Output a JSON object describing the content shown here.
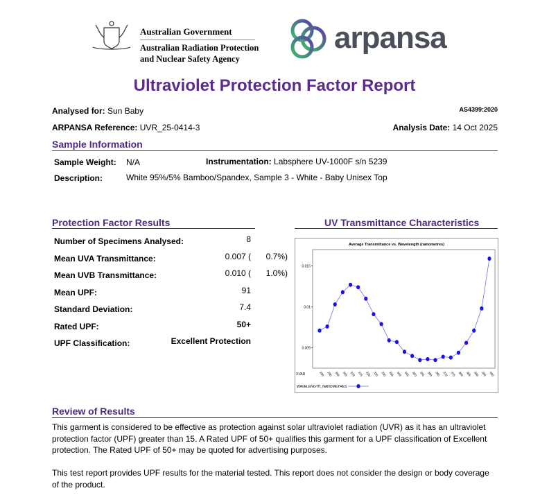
{
  "header": {
    "gov_line1": "Australian Government",
    "gov_line2": "Australian Radiation Protection",
    "gov_line3": "and Nuclear Safety Agency",
    "brand": "arpansa"
  },
  "title": "Ultraviolet Protection Factor Report",
  "meta": {
    "analysed_for_label": "Analysed for:",
    "analysed_for": "Sun Baby",
    "standard": "AS4399:2020",
    "reference_label": "ARPANSA Reference:",
    "reference": "UVR_25-0414-3",
    "date_label": "Analysis Date:",
    "date": "14 Oct 2025"
  },
  "sample": {
    "heading": "Sample Information",
    "weight_label": "Sample Weight:",
    "weight": "N/A",
    "instr_label": "Instrumentation:",
    "instr": "Labsphere UV-1000F s/n 5239",
    "desc_label": "Description:",
    "desc": "White 95%/5% Bamboo/Spandex, Sample 3 - White - Baby Unisex Top"
  },
  "results": {
    "heading": "Protection Factor Results",
    "rows": [
      {
        "label": "Number of Specimens Analysed:",
        "value": "8",
        "pct": ""
      },
      {
        "label": "Mean UVA Transmittance:",
        "value": "0.007 (",
        "pct": "0.7%)"
      },
      {
        "label": "Mean UVB Transmittance:",
        "value": "0.010 (",
        "pct": "1.0%)"
      },
      {
        "label": "Mean UPF:",
        "value": "91",
        "pct": ""
      },
      {
        "label": "Standard Deviation:",
        "value": "7.4",
        "pct": ""
      },
      {
        "label": "Rated UPF:",
        "value": "50+",
        "pct": ""
      },
      {
        "label": "UPF Classification:",
        "value": "Excellent Protection",
        "pct": ""
      }
    ]
  },
  "uv_heading": "UV Transmittance Characteristics",
  "chart_data": {
    "type": "line",
    "title": "Average Transmittance vs. Wavelength (nanometres)",
    "xlabel": "XVAR",
    "legend": "WAVELENGTH_NANOMETRES",
    "legend_position": "bottom-left",
    "x": [
      290,
      295,
      300,
      305,
      310,
      315,
      320,
      325,
      330,
      335,
      340,
      345,
      350,
      355,
      360,
      365,
      370,
      375,
      380,
      385,
      390,
      395,
      400
    ],
    "values": [
      0.0071,
      0.0076,
      0.0103,
      0.0118,
      0.0127,
      0.0124,
      0.011,
      0.0091,
      0.0079,
      0.0059,
      0.0057,
      0.0045,
      0.004,
      0.0035,
      0.0036,
      0.0035,
      0.0039,
      0.0038,
      0.0044,
      0.0056,
      0.0071,
      0.0098,
      0.0159
    ],
    "yticks": [
      "0.005",
      "0.01",
      "0.015"
    ],
    "ytick_values": [
      0.005,
      0.01,
      0.015
    ],
    "ylim": [
      0.0025,
      0.017
    ],
    "color": "#1a10e8"
  },
  "review": {
    "heading": "Review of Results",
    "p1": "This garment is considered to be effective as protection against solar ultraviolet radiation (UVR) as it has an ultraviolet protection factor (UPF) greater than 15. A Rated UPF of 50+ qualifies this garment for a UPF classification of Excellent protection. The Rated UPF of 50+ may be quoted for advertising purposes.",
    "p2": "This test report provides UPF results for the material tested. This report does not consider the design or body coverage of the product."
  }
}
